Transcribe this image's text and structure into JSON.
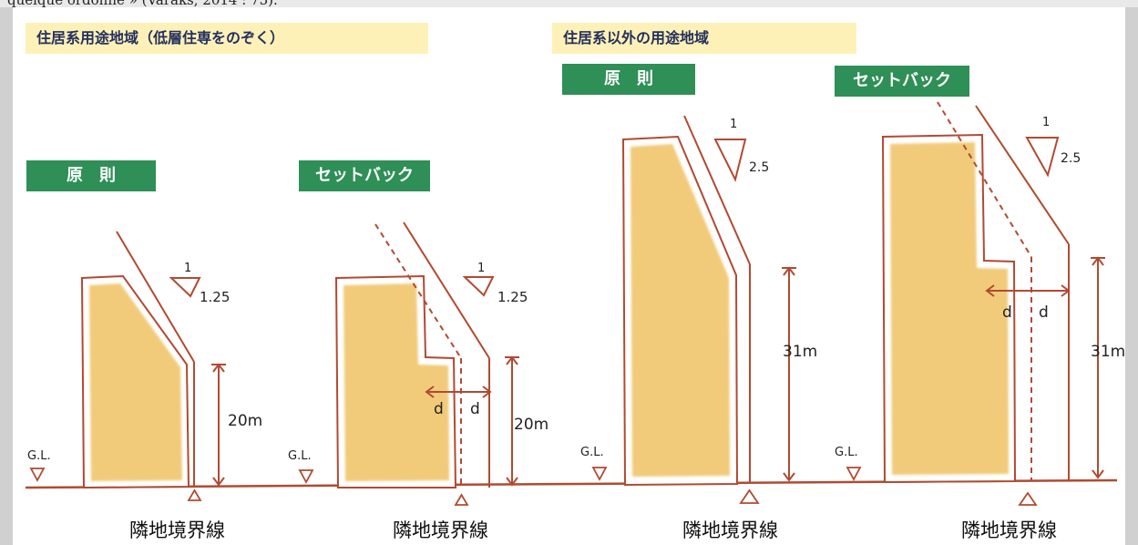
{
  "caption_fragment": "quelque ordonné » (Varaks, 2014 : 75).",
  "sections": {
    "residential": "住居系用途地域（低層住専をのぞく）",
    "nonresidential": "住居系以外の用途地域"
  },
  "panels": [
    {
      "label": "原　則",
      "slope_rise": "1",
      "slope_run": "1.25",
      "height": "20m",
      "gl": "G.L.",
      "boundary": "隣地境界線"
    },
    {
      "label": "セットバック",
      "slope_rise": "1",
      "slope_run": "1.25",
      "height": "20m",
      "gl": "G.L.",
      "boundary": "隣地境界線",
      "setback": "d"
    },
    {
      "label": "原　則",
      "slope_rise": "1",
      "slope_run": "2.5",
      "height": "31m",
      "gl": "G.L.",
      "boundary": "隣地境界線"
    },
    {
      "label": "セットバック",
      "slope_rise": "1",
      "slope_run": "2.5",
      "height": "31m",
      "gl": "G.L.",
      "boundary": "隣地境界線",
      "setback": "d"
    }
  ],
  "colors": {
    "building_fill": "#f1cb7a",
    "building_outline": "#b14a32",
    "label_green": "#2e8f57",
    "title_bg": "#fdf1b8",
    "title_text": "#24305e"
  }
}
